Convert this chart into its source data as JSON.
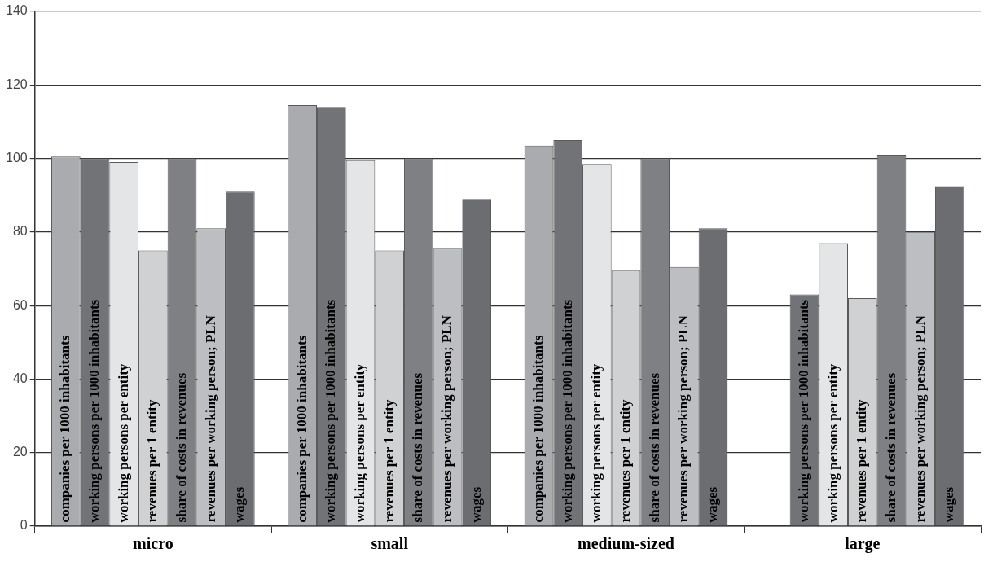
{
  "chart_data": {
    "type": "bar",
    "categories": [
      "micro",
      "small",
      "medium-sized",
      "large"
    ],
    "series": [
      {
        "name": "companies per 1000 inhabitants",
        "color": "#a9abaf",
        "values": [
          100.5,
          114.5,
          103.5,
          null
        ]
      },
      {
        "name": "working persons per 1000 inhabitants",
        "color": "#727376",
        "values": [
          100,
          114,
          105,
          63
        ]
      },
      {
        "name": "working persons per entity",
        "color": "#e4e5e7",
        "values": [
          99,
          99.5,
          98.5,
          77
        ]
      },
      {
        "name": "revenues per 1 entity",
        "color": "#d0d1d3",
        "values": [
          75,
          75,
          69.5,
          62
        ]
      },
      {
        "name": "share of costs in revenues",
        "color": "#7f8084",
        "values": [
          100,
          100,
          100,
          101
        ]
      },
      {
        "name": "revenues per working person; PLN",
        "color": "#bdbec1",
        "values": [
          81,
          75.5,
          70.5,
          80
        ]
      },
      {
        "name": "wages",
        "color": "#6c6d70",
        "values": [
          91,
          89,
          81,
          92.5
        ]
      }
    ],
    "ylim": [
      0,
      140
    ],
    "yticks": [
      0,
      20,
      40,
      60,
      80,
      100,
      120,
      140
    ],
    "grid": "y",
    "legend": false
  }
}
